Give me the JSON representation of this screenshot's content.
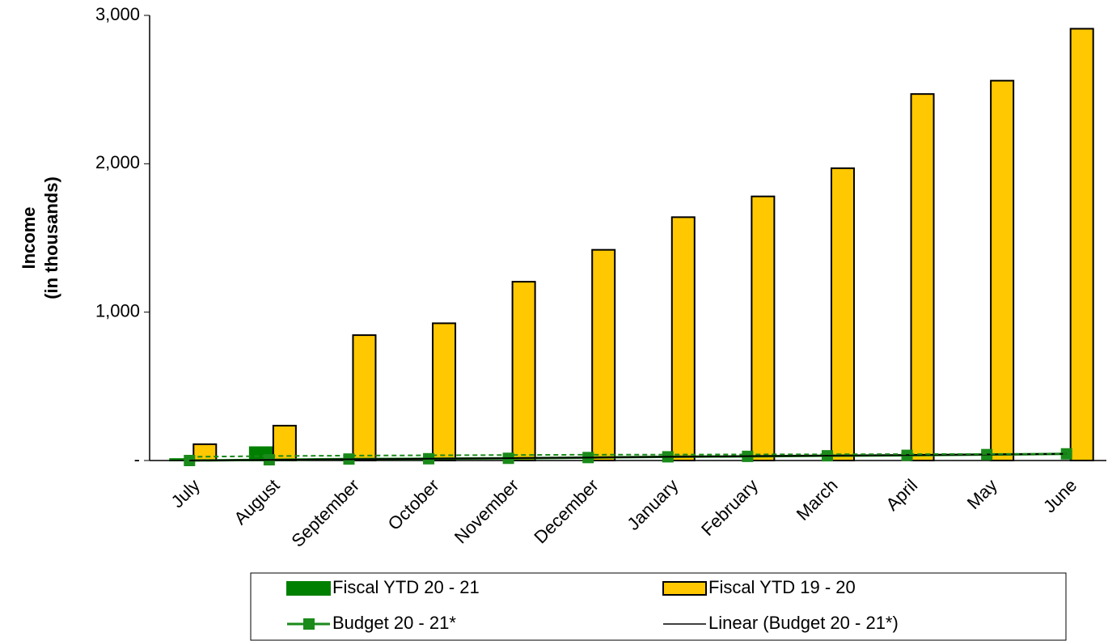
{
  "chart_data": {
    "type": "bar",
    "ylabel": [
      "Income",
      "(in thousands)"
    ],
    "categories": [
      "July",
      "August",
      "September",
      "October",
      "November",
      "December",
      "January",
      "February",
      "March",
      "April",
      "May",
      "June"
    ],
    "series": [
      {
        "name": "Fiscal YTD 20 - 21",
        "type": "bar",
        "color": "#008000",
        "values": [
          10,
          90,
          null,
          null,
          null,
          null,
          null,
          null,
          null,
          null,
          null,
          null
        ]
      },
      {
        "name": "Fiscal YTD 19 - 20",
        "type": "bar",
        "color": "#ffc800",
        "values": [
          110,
          235,
          845,
          925,
          1205,
          1420,
          1640,
          1780,
          1970,
          2470,
          2560,
          2910
        ]
      },
      {
        "name": "Budget 20 - 21*",
        "type": "line",
        "color": "#1a8a1a",
        "markers": true,
        "values": [
          0,
          5,
          10,
          12,
          15,
          20,
          25,
          28,
          32,
          35,
          40,
          45
        ]
      },
      {
        "name": "Linear (Budget 20 - 21*)",
        "type": "line",
        "color": "#000000",
        "values": [
          0,
          4,
          8,
          12,
          16,
          20,
          25,
          29,
          33,
          37,
          41,
          45
        ]
      },
      {
        "type": "line",
        "color": "#1a8a1a",
        "dash": true,
        "values": [
          25,
          30,
          33,
          35,
          37,
          39,
          40,
          41,
          42,
          43,
          44,
          45
        ]
      }
    ],
    "ylim": [
      0,
      3000
    ],
    "yticks": [
      {
        "value": 0,
        "label": "-"
      },
      {
        "value": 1000,
        "label": "1,000"
      },
      {
        "value": 2000,
        "label": "2,000"
      },
      {
        "value": 3000,
        "label": "3,000"
      }
    ]
  }
}
